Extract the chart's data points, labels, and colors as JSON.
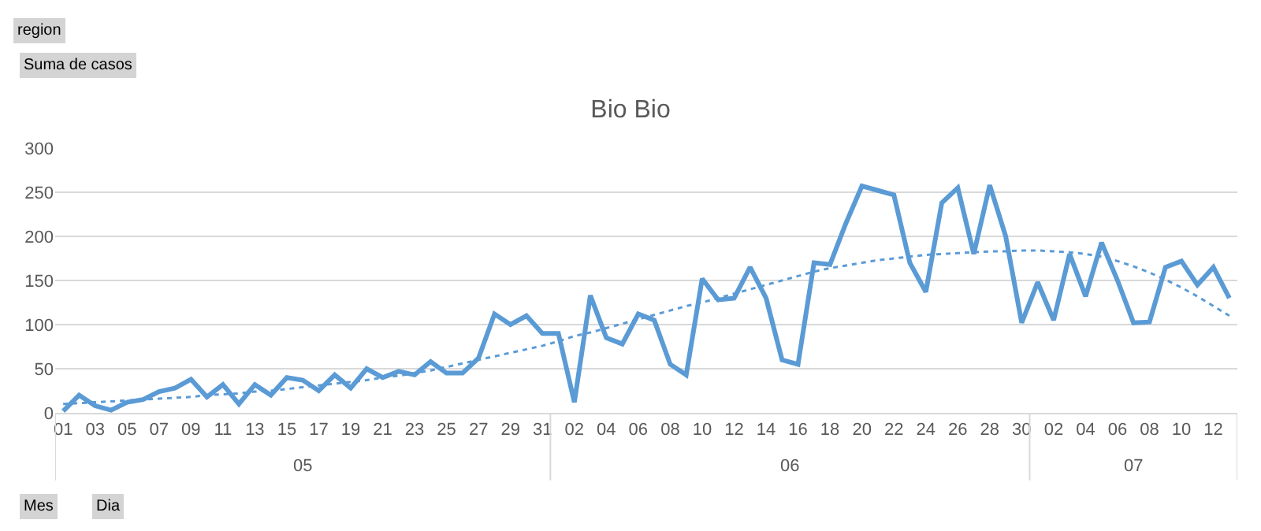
{
  "chart_data": {
    "type": "line",
    "title": "Bio Bio",
    "categories": [
      "01",
      null,
      "03",
      null,
      "05",
      null,
      "07",
      null,
      "09",
      null,
      "11",
      null,
      "13",
      null,
      "15",
      null,
      "17",
      null,
      "19",
      null,
      "21",
      null,
      "23",
      null,
      "25",
      null,
      "27",
      null,
      "29",
      null,
      "31",
      null,
      "02",
      null,
      "04",
      null,
      "06",
      null,
      "08",
      null,
      "10",
      null,
      "12",
      null,
      "14",
      null,
      "16",
      null,
      "18",
      null,
      "20",
      null,
      "22",
      null,
      "24",
      null,
      "26",
      null,
      "28",
      null,
      "30",
      null,
      "02",
      null,
      "04",
      null,
      "06",
      null,
      "08",
      null,
      "10",
      null,
      "12",
      null
    ],
    "series": [
      {
        "color": "#5b9bd5",
        "line_style": "solid",
        "values": [
          2,
          20,
          8,
          3,
          12,
          15,
          24,
          28,
          38,
          18,
          32,
          10,
          32,
          20,
          40,
          37,
          25,
          43,
          28,
          50,
          40,
          47,
          43,
          58,
          45,
          45,
          62,
          112,
          100,
          110,
          90,
          90,
          12,
          133,
          85,
          78,
          112,
          105,
          55,
          43,
          152,
          128,
          130,
          165,
          130,
          60,
          55,
          170,
          168,
          215,
          257,
          252,
          247,
          170,
          137,
          238,
          255,
          180,
          258,
          200,
          102,
          148,
          105,
          180,
          132,
          193,
          150,
          102,
          103,
          165,
          172,
          145,
          165,
          130
        ]
      },
      {
        "color": "#5b9bd5",
        "line_style": "dotted",
        "values": [
          10,
          11,
          12,
          13,
          14,
          15,
          16,
          17,
          18,
          20,
          21,
          22,
          24,
          25,
          27,
          29,
          31,
          33,
          35,
          37,
          40,
          42,
          45,
          48,
          52,
          56,
          60,
          64,
          68,
          72,
          76,
          81,
          87,
          91,
          96,
          101,
          106,
          111,
          116,
          121,
          125,
          130,
          135,
          140,
          145,
          150,
          155,
          160,
          164,
          167,
          170,
          173,
          175,
          177,
          179,
          180,
          181,
          182,
          183,
          183,
          184,
          184,
          183,
          182,
          180,
          177,
          172,
          166,
          159,
          151,
          142,
          132,
          121,
          110
        ]
      }
    ],
    "ylim": [
      0,
      300
    ],
    "yticks": [
      0,
      50,
      100,
      150,
      200,
      250,
      300
    ],
    "grid": "y",
    "marker": "none",
    "annotations": [
      "05",
      "06",
      "07",
      "region",
      "Suma de casos",
      "Mes",
      "Dia"
    ]
  }
}
